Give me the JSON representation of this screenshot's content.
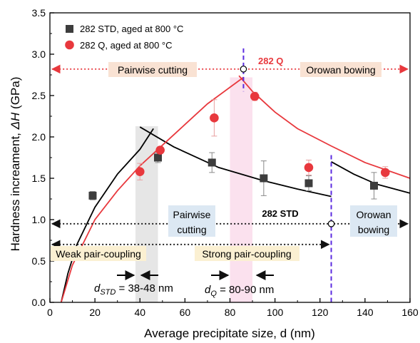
{
  "chart_data": {
    "type": "scatter",
    "title": "",
    "xlabel": "Average precipitate size, d (nm)",
    "ylabel_prefix": "Hardness increament, ",
    "ylabel_symbol": "ΔH",
    "ylabel_suffix": " (GPa)",
    "xlim": [
      0,
      160
    ],
    "ylim": [
      0,
      3.5
    ],
    "xticks": [
      "0",
      "20",
      "40",
      "60",
      "80",
      "100",
      "120",
      "140",
      "160"
    ],
    "yticks": [
      "0.0",
      "0.5",
      "1.0",
      "1.5",
      "2.0",
      "2.5",
      "3.0",
      "3.5"
    ],
    "legend_position": "top-left",
    "series": [
      {
        "name": "282 STD, aged at 800 °C",
        "marker": "square",
        "color": "#3d3d3d",
        "points": [
          {
            "x": 19,
            "y": 1.29,
            "err": 0.05
          },
          {
            "x": 48,
            "y": 1.75,
            "err": 0.06
          },
          {
            "x": 72,
            "y": 1.69,
            "err": 0.12
          },
          {
            "x": 95,
            "y": 1.5,
            "err": 0.21
          },
          {
            "x": 115,
            "y": 1.44,
            "err": 0.09
          },
          {
            "x": 144,
            "y": 1.41,
            "err": 0.16
          }
        ]
      },
      {
        "name": "282 Q, aged at 800 °C",
        "marker": "circle",
        "color": "#e8383d",
        "points": [
          {
            "x": 40,
            "y": 1.58,
            "err": 0.1
          },
          {
            "x": 49,
            "y": 1.84,
            "err": 0.04
          },
          {
            "x": 73,
            "y": 2.23,
            "err": 0.22
          },
          {
            "x": 91,
            "y": 2.49,
            "err": 0.05
          },
          {
            "x": 115,
            "y": 1.63,
            "err": 0.09
          },
          {
            "x": 149,
            "y": 1.57,
            "err": 0.07
          }
        ]
      }
    ],
    "model_curves": [
      {
        "color": "#000000",
        "points": [
          [
            5,
            0
          ],
          [
            8,
            0.35
          ],
          [
            12,
            0.7
          ],
          [
            20,
            1.15
          ],
          [
            30,
            1.55
          ],
          [
            40,
            1.85
          ],
          [
            46,
            2.1
          ]
        ]
      },
      {
        "color": "#000000",
        "points": [
          [
            40,
            2.12
          ],
          [
            55,
            1.88
          ],
          [
            75,
            1.63
          ],
          [
            95,
            1.47
          ],
          [
            110,
            1.37
          ],
          [
            125,
            1.28
          ]
        ]
      },
      {
        "color": "#000000",
        "points": [
          [
            125,
            1.7
          ],
          [
            135,
            1.55
          ],
          [
            145,
            1.43
          ],
          [
            160,
            1.32
          ]
        ]
      },
      {
        "color": "#e8383d",
        "points": [
          [
            5,
            0
          ],
          [
            10,
            0.45
          ],
          [
            20,
            1.0
          ],
          [
            30,
            1.35
          ],
          [
            40,
            1.65
          ],
          [
            50,
            1.9
          ],
          [
            60,
            2.15
          ],
          [
            70,
            2.4
          ],
          [
            80,
            2.6
          ],
          [
            86,
            2.72
          ]
        ]
      },
      {
        "color": "#e8383d",
        "points": [
          [
            84,
            2.74
          ],
          [
            90,
            2.55
          ],
          [
            100,
            2.3
          ],
          [
            110,
            2.1
          ],
          [
            125,
            1.89
          ],
          [
            140,
            1.69
          ],
          [
            160,
            1.5
          ]
        ]
      }
    ],
    "shaded_bands": [
      {
        "x0": 38,
        "x1": 48,
        "y0": 0.0,
        "y1": 2.13,
        "color": "#e6e6e6"
      },
      {
        "x0": 80,
        "x1": 90,
        "y0": 0.0,
        "y1": 2.72,
        "color": "#fbe1ee"
      }
    ],
    "transitions": [
      {
        "x": 86,
        "y": 2.82,
        "y0": 2.55,
        "y1": 3.07,
        "color": "#5b2be0"
      },
      {
        "x": 125,
        "y": 0.95,
        "y0": 0.0,
        "y1": 1.78,
        "color": "#5b2be0"
      }
    ],
    "annotations": {
      "q_label": "282 Q",
      "std_label": "282 STD",
      "q_regime_left": "Pairwise cutting",
      "q_regime_right": "Orowan bowing",
      "std_regime_left_line1": "Pairwise",
      "std_regime_left_line2": "cutting",
      "std_regime_right_line1": "Orowan",
      "std_regime_right_line2": "bowing",
      "weak_coupling": "Weak pair-coupling",
      "strong_coupling": "Strong pair-coupling",
      "dstd_symbol": "d",
      "dstd_sub": "STD",
      "dstd_value": " = 38-48 nm",
      "dq_symbol": "d",
      "dq_sub": "Q",
      "dq_value": " = 80-90 nm"
    },
    "regime_arrows": [
      {
        "y": 2.82,
        "x0": 1,
        "x1": 159,
        "color": "#e8383d"
      },
      {
        "y": 0.95,
        "x0": 1,
        "x1": 159,
        "color": "#111111"
      },
      {
        "y": 0.7,
        "x0": 1,
        "x1": 124,
        "color": "#111111"
      }
    ]
  }
}
